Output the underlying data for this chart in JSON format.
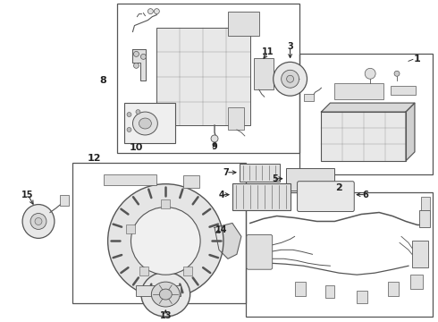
{
  "bg_color": "#ffffff",
  "lc": "#555555",
  "figsize": [
    4.9,
    3.6
  ],
  "dpi": 100
}
